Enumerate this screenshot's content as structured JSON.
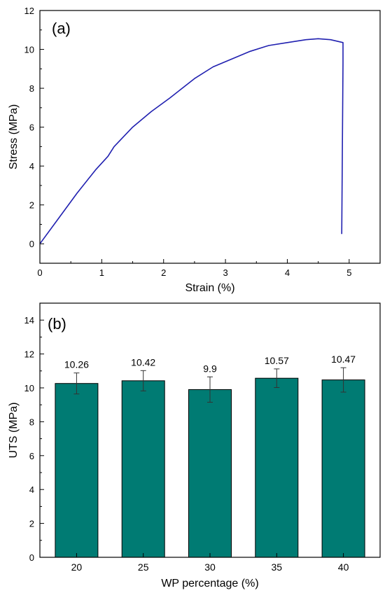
{
  "chart_data": [
    {
      "type": "line",
      "panel_label": "(a)",
      "xlabel": "Strain (%)",
      "ylabel": "Stress (MPa)",
      "xlim": [
        0,
        5.5
      ],
      "ylim": [
        -1,
        12
      ],
      "x_ticks": [
        0,
        1,
        2,
        3,
        4,
        5
      ],
      "y_ticks": [
        0,
        2,
        4,
        6,
        8,
        10,
        12
      ],
      "grid": false,
      "line_color": "#2020b0",
      "series": [
        {
          "x": [
            0,
            0.3,
            0.6,
            0.9,
            1.1,
            1.2,
            1.5,
            1.8,
            2.1,
            2.5,
            2.8,
            3.1,
            3.4,
            3.7,
            4.0,
            4.3,
            4.5,
            4.7,
            4.9,
            4.9,
            4.88
          ],
          "y": [
            0,
            1.3,
            2.6,
            3.8,
            4.5,
            5.0,
            6.0,
            6.8,
            7.5,
            8.5,
            9.1,
            9.5,
            9.9,
            10.2,
            10.35,
            10.5,
            10.55,
            10.5,
            10.35,
            9.3,
            0.5
          ]
        }
      ]
    },
    {
      "type": "bar",
      "panel_label": "(b)",
      "xlabel": "WP percentage (%)",
      "ylabel": "UTS (MPa)",
      "categories": [
        "20",
        "25",
        "30",
        "35",
        "40"
      ],
      "values": [
        10.26,
        10.42,
        9.9,
        10.57,
        10.47
      ],
      "value_labels": [
        "10.26",
        "10.42",
        "9.9",
        "10.57",
        "10.47"
      ],
      "errors": [
        0.62,
        0.6,
        0.75,
        0.55,
        0.72
      ],
      "ylim": [
        0,
        15
      ],
      "y_ticks": [
        0,
        2,
        4,
        6,
        8,
        10,
        12,
        14
      ],
      "grid": false,
      "bar_color": "#007b73"
    }
  ]
}
